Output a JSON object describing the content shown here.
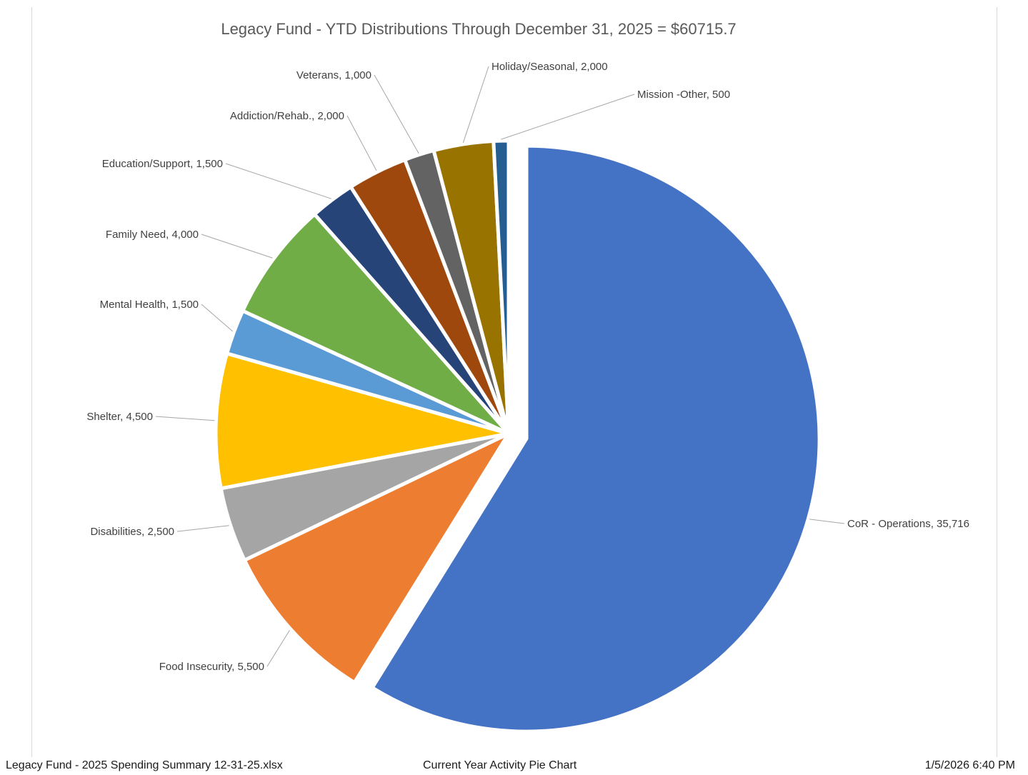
{
  "chart_data": {
    "type": "pie",
    "title": "Legacy Fund - YTD Distributions Through  December 31, 2025 = $60715.7",
    "slices": [
      {
        "name": "CoR - Operations",
        "value": 35716,
        "label": "CoR - Operations, 35,716",
        "color": "#4472C4",
        "exploded": true
      },
      {
        "name": "Food Insecurity",
        "value": 5500,
        "label": "Food Insecurity, 5,500",
        "color": "#ED7D31",
        "exploded": false
      },
      {
        "name": "Disabilities",
        "value": 2500,
        "label": "Disabilities, 2,500",
        "color": "#A5A5A5",
        "exploded": false
      },
      {
        "name": "Shelter",
        "value": 4500,
        "label": "Shelter, 4,500",
        "color": "#FFC000",
        "exploded": false
      },
      {
        "name": "Mental Health",
        "value": 1500,
        "label": "Mental Health, 1,500",
        "color": "#5B9BD5",
        "exploded": false
      },
      {
        "name": "Family Need",
        "value": 4000,
        "label": "Family Need, 4,000",
        "color": "#70AD47",
        "exploded": false
      },
      {
        "name": "Education/Support",
        "value": 1500,
        "label": "Education/Support, 1,500",
        "color": "#264478",
        "exploded": false
      },
      {
        "name": "Addiction/Rehab.",
        "value": 2000,
        "label": "Addiction/Rehab., 2,000",
        "color": "#9E480E",
        "exploded": false
      },
      {
        "name": "Veterans",
        "value": 1000,
        "label": "Veterans, 1,000",
        "color": "#636363",
        "exploded": false
      },
      {
        "name": "Holiday/Seasonal",
        "value": 2000,
        "label": "Holiday/Seasonal, 2,000",
        "color": "#997300",
        "exploded": false
      },
      {
        "name": "Mission -Other",
        "value": 500,
        "label": "Mission -Other, 500",
        "color": "#255E91",
        "exploded": false
      }
    ],
    "start": "12 o'clock",
    "direction": "clockwise",
    "legend": "none",
    "data_labels": "category name and value, outside with leader lines"
  },
  "footer": {
    "file_name": "Legacy Fund - 2025 Spending Summary 12-31-25.xlsx",
    "sheet_name": "Current Year Activity Pie Chart",
    "timestamp": "1/5/2026  6:40 PM"
  }
}
